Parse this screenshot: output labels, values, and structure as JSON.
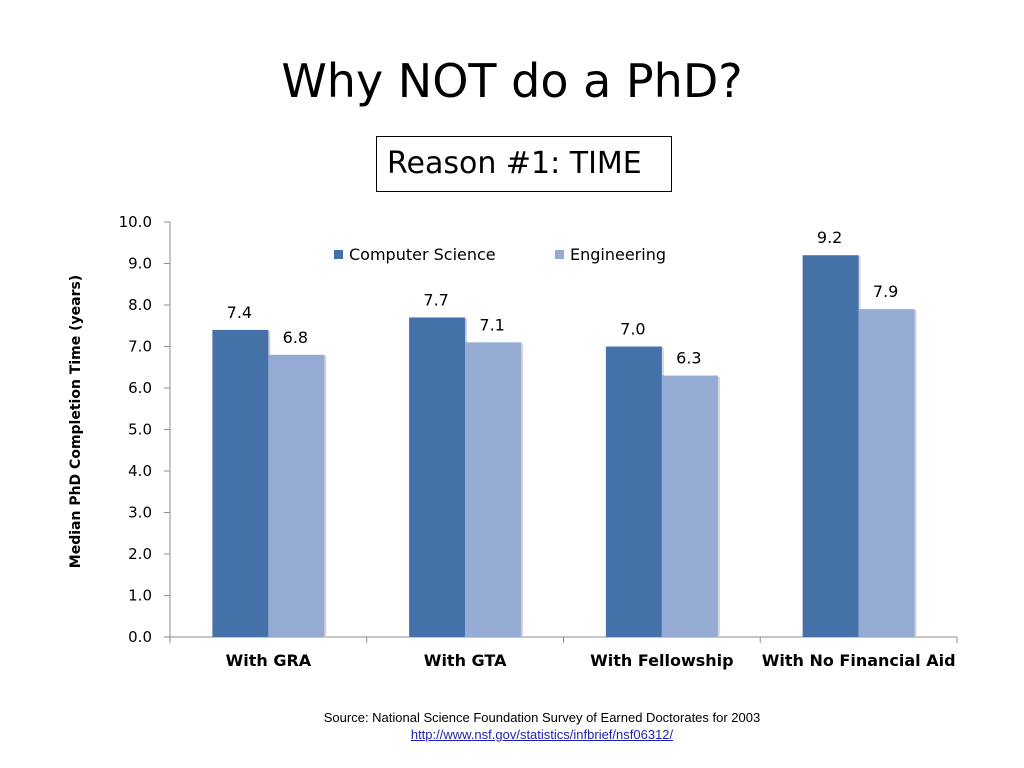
{
  "title": "Why NOT do a PhD?",
  "subtitle": "Reason #1: TIME",
  "source_text": "Source: National Science Foundation Survey of Earned Doctorates for 2003",
  "source_link": "http://www.nsf.gov/statistics/infbrief/nsf06312/",
  "chart_data": {
    "type": "bar",
    "ylabel": "Median PhD Completion Time (years)",
    "xlabel": "",
    "ylim": [
      0,
      10
    ],
    "ytick_step": 1,
    "ytick_labels": [
      "0.0",
      "1.0",
      "2.0",
      "3.0",
      "4.0",
      "5.0",
      "6.0",
      "7.0",
      "8.0",
      "9.0",
      "10.0"
    ],
    "categories": [
      "With GRA",
      "With GTA",
      "With Fellowship",
      "With No Financial Aid"
    ],
    "series": [
      {
        "name": "Computer Science",
        "color": "#4472a8",
        "values": [
          7.4,
          7.7,
          7.0,
          9.2
        ],
        "value_labels": [
          "7.4",
          "7.7",
          "7.0",
          "9.2"
        ]
      },
      {
        "name": "Engineering",
        "color": "#95abd3",
        "values": [
          6.8,
          7.1,
          6.3,
          7.9
        ],
        "value_labels": [
          "6.8",
          "7.1",
          "6.3",
          "7.9"
        ]
      }
    ],
    "grid": false,
    "legend_position": "top"
  }
}
